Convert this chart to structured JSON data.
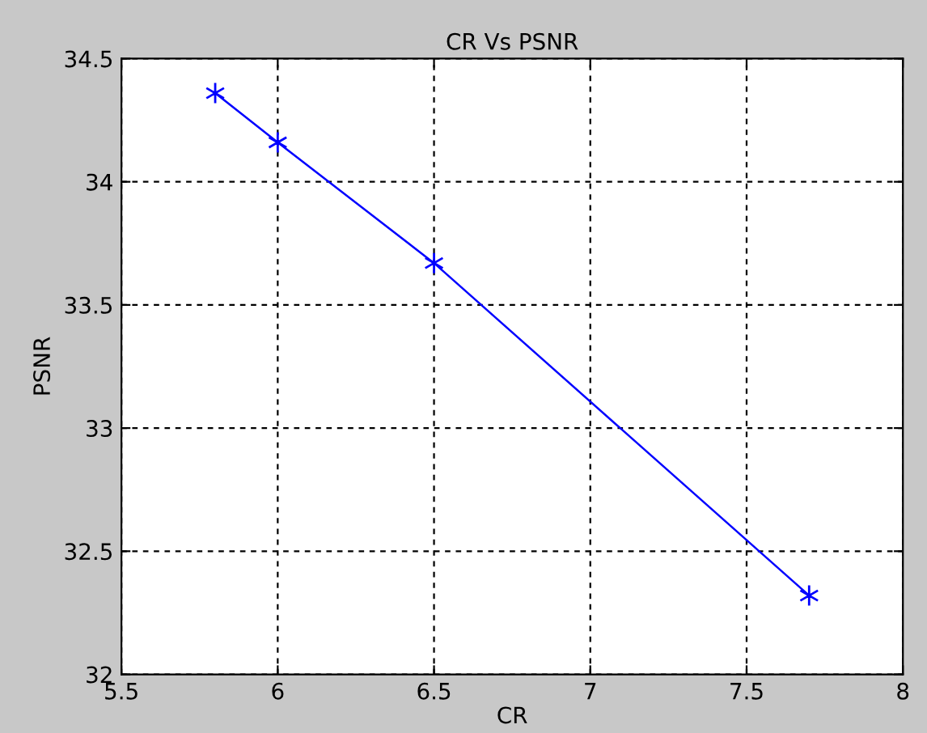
{
  "chart_data": {
    "type": "line",
    "title": "CR Vs PSNR",
    "xlabel": "CR",
    "ylabel": "PSNR",
    "x": [
      5.8,
      6.0,
      6.5,
      7.7
    ],
    "series": [
      {
        "color": "#0000ff",
        "values": [
          34.36,
          34.16,
          33.67,
          32.32
        ]
      }
    ],
    "xlim": [
      5.5,
      8
    ],
    "xticks": [
      5.5,
      6,
      6.5,
      7,
      7.5,
      8
    ],
    "ylim": [
      32,
      34.5
    ],
    "yticks": [
      32,
      32.5,
      33,
      33.5,
      34,
      34.5
    ],
    "grid": true,
    "marker": "cross",
    "line_style": "solid"
  }
}
